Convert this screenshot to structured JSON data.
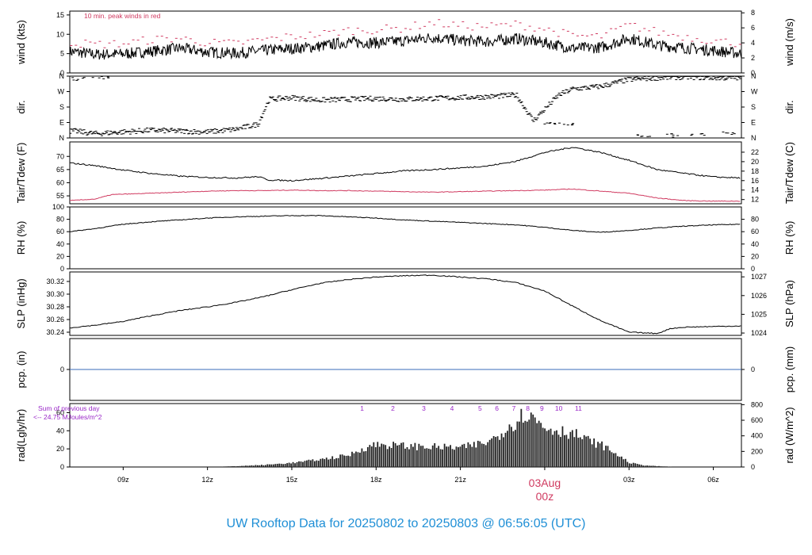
{
  "title": "UW Rooftop Data for 20250802  to  20250803 @ 06:56:05  (UTC)",
  "colors": {
    "title": "#1f8fd6",
    "peak": "#d03a60",
    "dewpoint": "#d03a60",
    "precip": "#3a6bb8",
    "radiation_label": "#9a28c8",
    "date_marker": "#d03a60",
    "trace": "#000000"
  },
  "x_axis": {
    "ticks": [
      {
        "label": "09z",
        "hour": 9
      },
      {
        "label": "12z",
        "hour": 12
      },
      {
        "label": "15z",
        "hour": 15
      },
      {
        "label": "18z",
        "hour": 18
      },
      {
        "label": "21z",
        "hour": 21
      },
      {
        "label": "03z",
        "hour": 27
      },
      {
        "label": "06z",
        "hour": 30
      }
    ],
    "date_marker": {
      "date": "03Aug",
      "time": "00z",
      "hour": 24
    },
    "range_hours": [
      7.1,
      31.0
    ]
  },
  "chart_data": [
    {
      "type": "line",
      "name": "wind",
      "annotation": "10 min. peak winds in red",
      "ylabel_left": "wind (kts)",
      "ylabel_right": "wind (m/s)",
      "ylim": [
        0,
        16
      ],
      "yticks_left": [
        0,
        5,
        10,
        15
      ],
      "ylim_right": [
        0,
        8.23
      ],
      "yticks_right": [
        0,
        2,
        4,
        6,
        8
      ],
      "series": [
        {
          "values": [
            [
              7.2,
              5.5
            ],
            [
              8.0,
              4.8
            ],
            [
              9.0,
              4.9
            ],
            [
              10.0,
              5.6
            ],
            [
              11.0,
              6.4
            ],
            [
              12.0,
              5.4
            ],
            [
              13.0,
              5.1
            ],
            [
              14.0,
              5.8
            ],
            [
              15.0,
              6.3
            ],
            [
              16.0,
              6.9
            ],
            [
              17.0,
              8.0
            ],
            [
              18.0,
              7.8
            ],
            [
              19.0,
              8.3
            ],
            [
              20.0,
              9.2
            ],
            [
              21.0,
              8.4
            ],
            [
              22.0,
              8.1
            ],
            [
              23.0,
              8.9
            ],
            [
              24.0,
              7.8
            ],
            [
              25.0,
              6.4
            ],
            [
              26.0,
              6.6
            ],
            [
              27.0,
              9.0
            ],
            [
              28.0,
              7.2
            ],
            [
              29.0,
              6.5
            ],
            [
              30.0,
              5.8
            ],
            [
              31.0,
              5.0
            ]
          ]
        },
        {
          "values": [
            [
              7.2,
              7.8
            ],
            [
              8.0,
              7.4
            ],
            [
              9.0,
              7.6
            ],
            [
              10.0,
              8.6
            ],
            [
              11.0,
              9.0
            ],
            [
              12.0,
              7.8
            ],
            [
              13.0,
              7.6
            ],
            [
              14.0,
              8.6
            ],
            [
              15.0,
              9.4
            ],
            [
              16.0,
              10.0
            ],
            [
              17.0,
              11.0
            ],
            [
              18.0,
              11.2
            ],
            [
              19.0,
              11.6
            ],
            [
              20.0,
              13.0
            ],
            [
              21.0,
              12.2
            ],
            [
              22.0,
              12.0
            ],
            [
              23.0,
              12.6
            ],
            [
              24.0,
              11.4
            ],
            [
              25.0,
              9.6
            ],
            [
              26.0,
              9.4
            ],
            [
              27.0,
              12.4
            ],
            [
              28.0,
              10.6
            ],
            [
              29.0,
              9.4
            ],
            [
              30.0,
              8.4
            ],
            [
              31.0,
              7.6
            ]
          ]
        }
      ]
    },
    {
      "type": "scatter",
      "name": "wind direction",
      "ylabel_left": "dir.",
      "ylabel_right": "dir.",
      "ylim": [
        0,
        360
      ],
      "yticks": [
        {
          "label": "N",
          "value": 0
        },
        {
          "label": "E",
          "value": 90
        },
        {
          "label": "S",
          "value": 180
        },
        {
          "label": "W",
          "value": 270
        },
        {
          "label": "N",
          "value": 360
        }
      ],
      "series": [
        {
          "values": [
            [
              7.3,
              40
            ],
            [
              8.0,
              25
            ],
            [
              9.0,
              35
            ],
            [
              10.0,
              45
            ],
            [
              11.0,
              40
            ],
            [
              12.0,
              35
            ],
            [
              13.0,
              50
            ],
            [
              13.8,
              80
            ],
            [
              14.2,
              225
            ],
            [
              15.0,
              235
            ],
            [
              16.0,
              220
            ],
            [
              17.0,
              225
            ],
            [
              18.0,
              230
            ],
            [
              19.0,
              225
            ],
            [
              20.0,
              230
            ],
            [
              21.0,
              235
            ],
            [
              22.0,
              240
            ],
            [
              23.0,
              250
            ],
            [
              23.6,
              100
            ],
            [
              24.5,
              250
            ],
            [
              25.0,
              285
            ],
            [
              26.0,
              300
            ],
            [
              27.0,
              340
            ],
            [
              28.0,
              350
            ],
            [
              29.0,
              355
            ],
            [
              30.0,
              350
            ],
            [
              31.0,
              350
            ]
          ]
        },
        {
          "values": [
            [
              7.5,
              345
            ],
            [
              8.2,
              350
            ],
            [
              24.2,
              90
            ],
            [
              24.8,
              80
            ],
            [
              27.5,
              10
            ],
            [
              28.5,
              15
            ],
            [
              29.5,
              20
            ],
            [
              30.5,
              25
            ]
          ]
        }
      ]
    },
    {
      "type": "line",
      "name": "temperature",
      "ylabel_left": "Tair/Tdew (F)",
      "ylabel_right": "Tair/Tdew (C)",
      "ylim": [
        52,
        75.5
      ],
      "yticks_left": [
        55,
        60,
        65,
        70
      ],
      "yticks_right": [
        12,
        14,
        16,
        18,
        20,
        22
      ],
      "series": [
        {
          "values": [
            [
              7.1,
              67.5
            ],
            [
              8.0,
              66.5
            ],
            [
              9.0,
              64.8
            ],
            [
              10.0,
              63.5
            ],
            [
              11.0,
              62.5
            ],
            [
              12.0,
              62.0
            ],
            [
              13.0,
              61.8
            ],
            [
              13.8,
              62.3
            ],
            [
              14.2,
              61.0
            ],
            [
              15.0,
              60.8
            ],
            [
              16.0,
              61.6
            ],
            [
              17.0,
              62.5
            ],
            [
              18.0,
              63.5
            ],
            [
              19.0,
              64.5
            ],
            [
              20.0,
              65.0
            ],
            [
              21.0,
              65.6
            ],
            [
              22.0,
              66.4
            ],
            [
              23.0,
              68.2
            ],
            [
              24.0,
              71.5
            ],
            [
              25.0,
              73.5
            ],
            [
              26.0,
              71.5
            ],
            [
              27.0,
              68.5
            ],
            [
              28.0,
              65.0
            ],
            [
              29.0,
              63.5
            ],
            [
              30.0,
              62.2
            ],
            [
              31.0,
              61.8
            ]
          ]
        },
        {
          "values": [
            [
              7.1,
              53.2
            ],
            [
              8.0,
              53.8
            ],
            [
              8.6,
              55.5
            ],
            [
              10.0,
              56.0
            ],
            [
              11.0,
              56.4
            ],
            [
              12.0,
              56.8
            ],
            [
              13.0,
              57.0
            ],
            [
              14.0,
              57.0
            ],
            [
              15.0,
              57.2
            ],
            [
              16.0,
              57.0
            ],
            [
              17.0,
              57.0
            ],
            [
              18.0,
              56.8
            ],
            [
              19.0,
              56.6
            ],
            [
              20.0,
              56.4
            ],
            [
              21.0,
              56.6
            ],
            [
              22.0,
              56.8
            ],
            [
              23.0,
              57.0
            ],
            [
              24.0,
              57.2
            ],
            [
              25.0,
              57.6
            ],
            [
              26.0,
              56.8
            ],
            [
              27.0,
              56.0
            ],
            [
              28.0,
              54.2
            ],
            [
              29.0,
              53.2
            ],
            [
              30.0,
              53.0
            ],
            [
              31.0,
              53.0
            ]
          ]
        }
      ]
    },
    {
      "type": "line",
      "name": "relative humidity",
      "ylabel_left": "RH (%)",
      "ylabel_right": "RH (%)",
      "ylim": [
        0,
        100
      ],
      "yticks_left": [
        0,
        20,
        40,
        60,
        80,
        100
      ],
      "yticks_right": [
        0,
        20,
        40,
        60,
        80
      ],
      "series": [
        {
          "values": [
            [
              7.1,
              60
            ],
            [
              8.0,
              65
            ],
            [
              9.0,
              72
            ],
            [
              10.0,
              76
            ],
            [
              11.0,
              79
            ],
            [
              12.0,
              82
            ],
            [
              13.0,
              84
            ],
            [
              14.0,
              85
            ],
            [
              15.0,
              86
            ],
            [
              16.0,
              86
            ],
            [
              17.0,
              84
            ],
            [
              18.0,
              82
            ],
            [
              19.0,
              79
            ],
            [
              20.0,
              77
            ],
            [
              21.0,
              75
            ],
            [
              22.0,
              73
            ],
            [
              23.0,
              71
            ],
            [
              24.0,
              67
            ],
            [
              25.0,
              62
            ],
            [
              26.0,
              59
            ],
            [
              27.0,
              62
            ],
            [
              28.0,
              66
            ],
            [
              29.0,
              69
            ],
            [
              30.0,
              71
            ],
            [
              31.0,
              72
            ]
          ]
        }
      ]
    },
    {
      "type": "line",
      "name": "sea level pressure",
      "ylabel_left": "SLP (inHg)",
      "ylabel_right": "SLP (hPa)",
      "ylim": [
        30.235,
        30.335
      ],
      "yticks_left": [
        30.24,
        30.26,
        30.28,
        30.3,
        30.32
      ],
      "yticks_left_labels": [
        "30.24",
        "30.26",
        "30.28",
        "30.30",
        "30.32"
      ],
      "yticks_right_hpa": [
        1024,
        1025,
        1026,
        1027
      ],
      "series": [
        {
          "values": [
            [
              7.1,
              30.247
            ],
            [
              8.0,
              30.251
            ],
            [
              9.0,
              30.257
            ],
            [
              10.0,
              30.266
            ],
            [
              11.0,
              30.274
            ],
            [
              12.0,
              30.28
            ],
            [
              13.0,
              30.287
            ],
            [
              14.0,
              30.296
            ],
            [
              15.0,
              30.307
            ],
            [
              16.0,
              30.317
            ],
            [
              17.0,
              30.323
            ],
            [
              18.0,
              30.327
            ],
            [
              19.0,
              30.329
            ],
            [
              20.0,
              30.33
            ],
            [
              21.0,
              30.327
            ],
            [
              22.0,
              30.324
            ],
            [
              23.0,
              30.318
            ],
            [
              24.0,
              30.305
            ],
            [
              25.0,
              30.281
            ],
            [
              26.0,
              30.258
            ],
            [
              27.0,
              30.24
            ],
            [
              28.0,
              30.238
            ],
            [
              28.5,
              30.246
            ],
            [
              29.0,
              30.248
            ],
            [
              30.0,
              30.249
            ],
            [
              31.0,
              30.25
            ]
          ]
        }
      ]
    },
    {
      "type": "line",
      "name": "precipitation",
      "ylabel_left": "pcp. (in)",
      "ylabel_right": "pcp. (mm)",
      "ylim": [
        -1,
        1
      ],
      "yticks_left": [
        0
      ],
      "yticks_right": [
        0
      ],
      "series": [
        {
          "values": [
            [
              7.1,
              0
            ],
            [
              31.0,
              0
            ]
          ]
        }
      ]
    },
    {
      "type": "bar",
      "name": "solar radiation",
      "ylabel_left": "rad(Lgly/hr)",
      "ylabel_right": "rad (W/m^2)",
      "ylim": [
        0,
        70
      ],
      "yticks_left": [
        0,
        20,
        40,
        60
      ],
      "yticks_right_wm2": [
        0,
        200,
        400,
        600,
        800
      ],
      "annotation_line1": "Sum of previous day",
      "annotation_line2": "<-- 24.75 MJoules/m^2",
      "uv_labels": [
        "1",
        "2",
        "3",
        "4",
        "5",
        "6",
        "7",
        "8",
        "9",
        "10",
        "11"
      ],
      "uv_positions": [
        17.5,
        18.6,
        19.7,
        20.7,
        21.7,
        22.3,
        22.9,
        23.4,
        23.9,
        24.5,
        25.2
      ],
      "series": [
        {
          "values": [
            [
              12.5,
              0.5
            ],
            [
              13.0,
              1
            ],
            [
              14.0,
              2.5
            ],
            [
              15.0,
              5
            ],
            [
              16.0,
              9
            ],
            [
              17.0,
              14
            ],
            [
              17.5,
              22
            ],
            [
              18.0,
              27
            ],
            [
              19.0,
              25
            ],
            [
              20.0,
              24
            ],
            [
              21.0,
              23
            ],
            [
              22.0,
              30
            ],
            [
              22.5,
              43
            ],
            [
              23.0,
              56
            ],
            [
              23.3,
              65
            ],
            [
              23.7,
              55
            ],
            [
              24.0,
              47
            ],
            [
              25.0,
              40
            ],
            [
              25.5,
              32
            ],
            [
              26.0,
              26
            ],
            [
              26.5,
              16
            ],
            [
              27.0,
              5
            ],
            [
              27.5,
              2
            ],
            [
              28.0,
              1
            ],
            [
              28.5,
              0.3
            ]
          ]
        }
      ]
    }
  ]
}
